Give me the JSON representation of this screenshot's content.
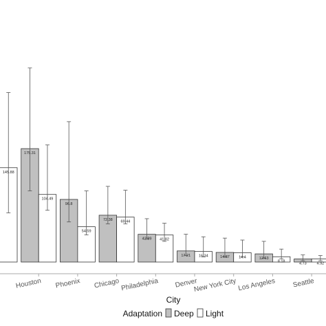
{
  "chart_data": {
    "type": "bar",
    "xlabel": "City",
    "ylabel": "",
    "title": "",
    "categories": [
      "",
      "Houston",
      "Phoenix",
      "Chicago",
      "Philadelphia",
      "Denver",
      "New York City",
      "Los Angeles",
      "Seattle"
    ],
    "series": [
      {
        "name": "Deep",
        "color": "#c0c0c0",
        "values": [
          null,
          175.31,
          96.8,
          72.38,
          42.89,
          17.21,
          14.87,
          12.63,
          4.73
        ],
        "labels": [
          "",
          "175.31",
          "96.8",
          "72.38",
          "42.89",
          "17.21",
          "14.87",
          "12.63",
          "4.73"
        ],
        "err_low": [
          null,
          110,
          62,
          59,
          36,
          10,
          8,
          6,
          2
        ],
        "err_high": [
          null,
          300,
          217,
          117,
          67,
          43,
          37,
          32,
          11
        ]
      },
      {
        "name": "Light",
        "color": "#ffffff",
        "values": [
          145.88,
          104.49,
          54.59,
          69.44,
          41.82,
          16.34,
          14.4,
          8.18,
          4.92
        ],
        "labels": [
          "145.88",
          "104.49",
          "54.59",
          "69.44",
          "41.82",
          "16.34",
          "14.4",
          "8.18",
          "4.92"
        ],
        "err_low": [
          76,
          80,
          42,
          59,
          32,
          8,
          8,
          5,
          2
        ],
        "err_high": [
          262,
          181,
          110,
          111,
          60,
          39,
          34,
          20,
          10
        ]
      }
    ],
    "ylim": [
      0,
      320
    ],
    "grid": false,
    "legend": {
      "title": "Adaptation",
      "position": "bottom",
      "entries": [
        "Deep",
        "Light"
      ]
    }
  }
}
